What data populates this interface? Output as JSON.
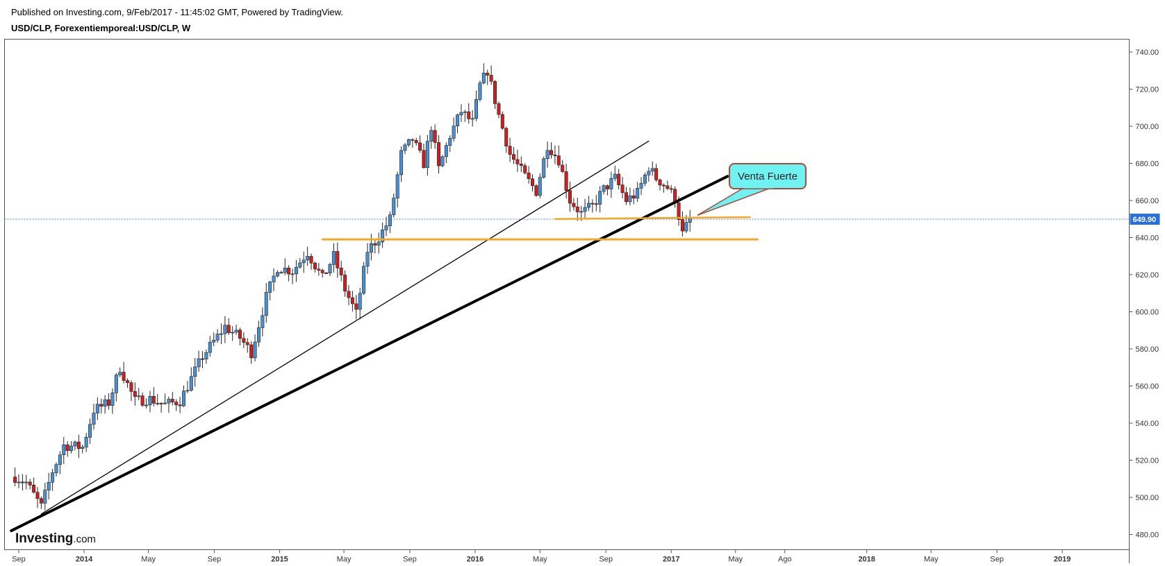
{
  "header": {
    "published": "Published on Investing.com, 9/Feb/2017 - 11:45:02 GMT, Powered by TradingView.",
    "symbol": "USD/CLP, Forexentiemporeal:USD/CLP, W"
  },
  "logo": {
    "main": "Investing",
    "suffix": ".com"
  },
  "colors": {
    "up": "#4a90d0",
    "down": "#cc1f1f",
    "orange": "#f5a623",
    "callout_fill": "#6ff2f2",
    "callout_border": "#a64b3a",
    "price_tag": "#2a6fdb"
  },
  "chart_data": {
    "type": "candlestick",
    "title": "USD/CLP, Forexentiemporeal:USD/CLP, W",
    "interval": "W",
    "ylim": [
      475,
      745
    ],
    "y_ticks": [
      "740.00",
      "720.00",
      "700.00",
      "680.00",
      "660.00",
      "640.00",
      "620.00",
      "600.00",
      "580.00",
      "560.00",
      "540.00",
      "520.00",
      "500.00",
      "480.00"
    ],
    "x_ticks": [
      {
        "label": "Sep",
        "date": "2013-09-01",
        "bold": false
      },
      {
        "label": "2014",
        "date": "2014-01-01",
        "bold": true
      },
      {
        "label": "May",
        "date": "2014-05-01",
        "bold": false
      },
      {
        "label": "Sep",
        "date": "2014-09-01",
        "bold": false
      },
      {
        "label": "2015",
        "date": "2015-01-01",
        "bold": true
      },
      {
        "label": "May",
        "date": "2015-05-01",
        "bold": false
      },
      {
        "label": "Sep",
        "date": "2015-09-01",
        "bold": false
      },
      {
        "label": "2016",
        "date": "2016-01-01",
        "bold": true
      },
      {
        "label": "May",
        "date": "2016-05-01",
        "bold": false
      },
      {
        "label": "Sep",
        "date": "2016-09-01",
        "bold": false
      },
      {
        "label": "2017",
        "date": "2017-01-01",
        "bold": true
      },
      {
        "label": "May",
        "date": "2017-05-01",
        "bold": false
      },
      {
        "label": "Ago",
        "date": "2017-08-01",
        "bold": false
      },
      {
        "label": "2018",
        "date": "2018-01-01",
        "bold": true
      },
      {
        "label": "May",
        "date": "2018-05-01",
        "bold": false
      },
      {
        "label": "Sep",
        "date": "2018-09-01",
        "bold": false
      },
      {
        "label": "2019",
        "date": "2019-01-01",
        "bold": true
      }
    ],
    "last_price": 649.9,
    "last_price_label": "649.90",
    "anchors": [
      [
        "2013-08-25",
        511
      ],
      [
        "2013-09-15",
        508
      ],
      [
        "2013-10-13",
        495
      ],
      [
        "2013-11-03",
        514
      ],
      [
        "2013-11-24",
        528
      ],
      [
        "2013-12-29",
        527
      ],
      [
        "2014-01-19",
        547
      ],
      [
        "2014-02-16",
        551
      ],
      [
        "2014-03-09",
        570
      ],
      [
        "2014-04-06",
        552
      ],
      [
        "2014-05-04",
        553
      ],
      [
        "2014-06-01",
        550
      ],
      [
        "2014-06-29",
        552
      ],
      [
        "2014-08-10",
        576
      ],
      [
        "2014-09-21",
        592
      ],
      [
        "2014-10-19",
        586
      ],
      [
        "2014-11-09",
        578
      ],
      [
        "2014-12-07",
        608
      ],
      [
        "2014-12-28",
        624
      ],
      [
        "2015-01-25",
        622
      ],
      [
        "2015-02-22",
        632
      ],
      [
        "2015-03-22",
        618
      ],
      [
        "2015-04-12",
        630
      ],
      [
        "2015-05-03",
        612
      ],
      [
        "2015-05-24",
        599
      ],
      [
        "2015-06-14",
        633
      ],
      [
        "2015-07-05",
        640
      ],
      [
        "2015-07-26",
        650
      ],
      [
        "2015-08-16",
        685
      ],
      [
        "2015-09-06",
        693
      ],
      [
        "2015-09-27",
        680
      ],
      [
        "2015-10-11",
        700
      ],
      [
        "2015-10-25",
        677
      ],
      [
        "2015-11-15",
        695
      ],
      [
        "2015-12-06",
        708
      ],
      [
        "2015-12-27",
        702
      ],
      [
        "2016-01-10",
        722
      ],
      [
        "2016-01-24",
        730
      ],
      [
        "2016-02-14",
        706
      ],
      [
        "2016-03-06",
        685
      ],
      [
        "2016-04-03",
        673
      ],
      [
        "2016-04-24",
        665
      ],
      [
        "2016-05-15",
        690
      ],
      [
        "2016-06-05",
        682
      ],
      [
        "2016-06-26",
        660
      ],
      [
        "2016-07-17",
        653
      ],
      [
        "2016-08-07",
        657
      ],
      [
        "2016-08-28",
        666
      ],
      [
        "2016-09-18",
        672
      ],
      [
        "2016-10-09",
        660
      ],
      [
        "2016-10-30",
        664
      ],
      [
        "2016-11-20",
        678
      ],
      [
        "2016-12-04",
        672
      ],
      [
        "2016-12-25",
        667
      ],
      [
        "2017-01-08",
        661
      ],
      [
        "2017-01-22",
        642
      ],
      [
        "2017-02-05",
        650
      ]
    ],
    "drawings": {
      "trendline_thick": {
        "from": [
          "2013-08-18",
          482
        ],
        "to": [
          "2017-04-16",
          673
        ]
      },
      "trendline_thin": {
        "from": [
          "2013-10-13",
          491
        ],
        "to": [
          "2016-11-20",
          692
        ]
      },
      "support_orange_lower": {
        "from": [
          "2015-03-22",
          639
        ],
        "to": [
          "2017-06-11",
          639
        ]
      },
      "support_orange_upper": {
        "from": [
          "2016-05-29",
          650
        ],
        "to": [
          "2017-05-28",
          651
        ]
      }
    },
    "annotation": {
      "text": "Venta Fuerte",
      "pointer_to": [
        "2017-02-19",
        652
      ]
    }
  }
}
